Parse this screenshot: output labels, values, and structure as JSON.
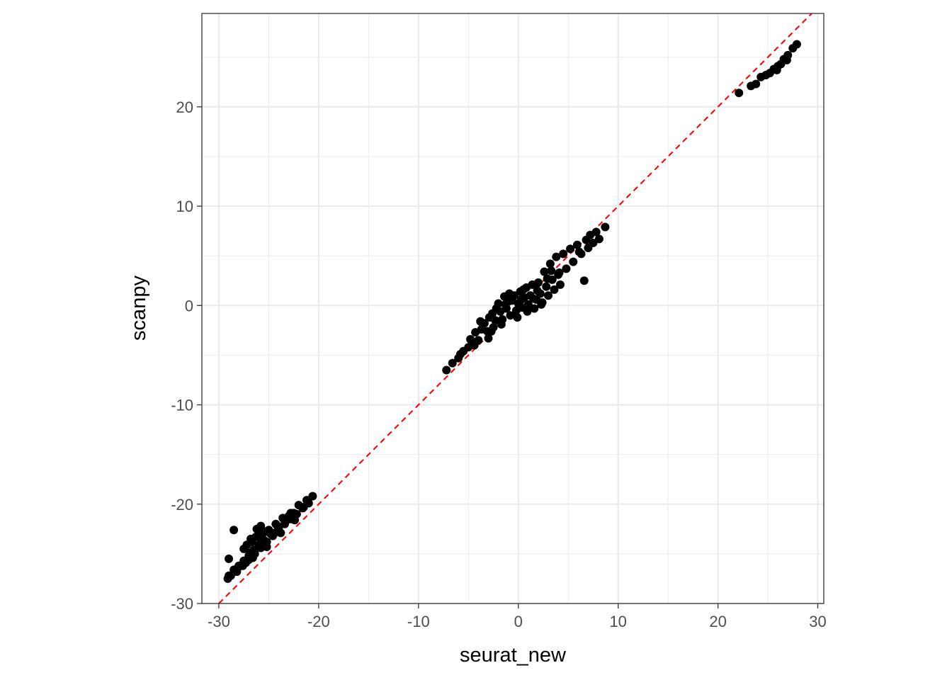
{
  "chart_data": {
    "type": "scatter",
    "title": "",
    "xlabel": "seurat_new",
    "ylabel": "scanpy",
    "xlim": [
      -31.7,
      30.6
    ],
    "ylim": [
      -30,
      29.4
    ],
    "x_ticks": [
      -30,
      -20,
      -10,
      0,
      10,
      20,
      30
    ],
    "y_ticks": [
      -30,
      -20,
      -10,
      0,
      10,
      20
    ],
    "x_tick_labels": [
      "-30",
      "-20",
      "-10",
      "0",
      "10",
      "20",
      "30"
    ],
    "y_tick_labels": [
      "-30",
      "-20",
      "-10",
      "0",
      "10",
      "20"
    ],
    "grid": true,
    "theme": "bw",
    "point_color": "#000000",
    "reference_line": {
      "slope": 1,
      "intercept": 0,
      "style": "dashed",
      "color": "#ff0000"
    },
    "series": [
      {
        "points": [
          [
            -29,
            -25.5
          ],
          [
            -28.5,
            -22.6
          ],
          [
            -27.5,
            -24.5
          ],
          [
            -26.8,
            -23.5
          ],
          [
            -26.2,
            -22.5
          ],
          [
            -25.8,
            -22.2
          ],
          [
            -25,
            -22.6
          ],
          [
            -24.3,
            -22
          ],
          [
            -23.6,
            -21.4
          ],
          [
            -22.8,
            -20.9
          ],
          [
            -22,
            -20.1
          ],
          [
            -21.2,
            -19.6
          ],
          [
            -20.6,
            -19.2
          ],
          [
            -21.5,
            -20.3
          ],
          [
            -22.5,
            -20.9
          ],
          [
            -23.2,
            -21.6
          ],
          [
            -24,
            -22.3
          ],
          [
            -24.8,
            -23
          ],
          [
            -25.5,
            -23.6
          ],
          [
            -26,
            -24.1
          ],
          [
            -26.5,
            -24.6
          ],
          [
            -27,
            -25.2
          ],
          [
            -27.5,
            -25.7
          ],
          [
            -28,
            -26.2
          ],
          [
            -28.5,
            -26.6
          ],
          [
            -29,
            -27.2
          ],
          [
            -29.1,
            -27.5
          ],
          [
            -28.8,
            -27.2
          ],
          [
            -28.2,
            -26.8
          ],
          [
            -27.6,
            -26.2
          ],
          [
            -27,
            -25.6
          ],
          [
            -26.4,
            -25
          ],
          [
            -25.8,
            -24.4
          ],
          [
            -25.2,
            -23.8
          ],
          [
            -24.6,
            -23.2
          ],
          [
            -24,
            -22.6
          ],
          [
            -23.4,
            -22
          ],
          [
            -22.8,
            -21.5
          ],
          [
            -22.2,
            -21
          ],
          [
            -21.6,
            -20.4
          ],
          [
            -21,
            -19.9
          ],
          [
            -27.2,
            -24.1
          ],
          [
            -26.3,
            -23.3
          ],
          [
            -25.4,
            -22.8
          ],
          [
            -24.4,
            -22.9
          ],
          [
            -25.9,
            -23.3
          ],
          [
            -26.9,
            -24.9
          ],
          [
            -28.1,
            -26.4
          ],
          [
            -27.3,
            -25.9
          ],
          [
            -26.6,
            -25.4
          ],
          [
            -25.2,
            -24.3
          ],
          [
            -23.8,
            -22.9
          ],
          [
            -22.4,
            -21.6
          ],
          [
            -23,
            -21.2
          ],
          [
            -24.2,
            -22.1
          ],
          [
            -25.6,
            -22.7
          ],
          [
            -26.7,
            -23.8
          ],
          [
            -7.2,
            -6.5
          ],
          [
            -6.6,
            -5.8
          ],
          [
            -6,
            -5.3
          ],
          [
            -5.5,
            -4.6
          ],
          [
            -5,
            -4.2
          ],
          [
            -4.8,
            -3.4
          ],
          [
            -4.3,
            -2.7
          ],
          [
            -4,
            -3.5
          ],
          [
            -3.7,
            -2.4
          ],
          [
            -3.4,
            -1.8
          ],
          [
            -3.1,
            -2.6
          ],
          [
            -2.9,
            -1.2
          ],
          [
            -2.6,
            -0.8
          ],
          [
            -2.5,
            -2.2
          ],
          [
            -2.3,
            -1.5
          ],
          [
            -2,
            0.2
          ],
          [
            -1.8,
            -0.6
          ],
          [
            -1.6,
            -1.4
          ],
          [
            -1.4,
            0.9
          ],
          [
            -1.2,
            -0.3
          ],
          [
            -1,
            0.4
          ],
          [
            -0.8,
            -1
          ],
          [
            -0.6,
            0.5
          ],
          [
            -0.4,
            1
          ],
          [
            -0.2,
            -0.5
          ],
          [
            0,
            0.2
          ],
          [
            0.2,
            1.4
          ],
          [
            0.4,
            -0.2
          ],
          [
            0.6,
            0.8
          ],
          [
            0.8,
            1.8
          ],
          [
            1,
            0.1
          ],
          [
            1.2,
            1
          ],
          [
            1.4,
            2.1
          ],
          [
            1.6,
            -0.3
          ],
          [
            1.8,
            0.6
          ],
          [
            2,
            2.3
          ],
          [
            2.2,
            1.2
          ],
          [
            2.4,
            0.3
          ],
          [
            2.6,
            3.4
          ],
          [
            2.8,
            1.9
          ],
          [
            3,
            1
          ],
          [
            3.2,
            4.2
          ],
          [
            3.4,
            2.6
          ],
          [
            3.6,
            1.6
          ],
          [
            3.8,
            4.9
          ],
          [
            4,
            3.1
          ],
          [
            4.2,
            2.1
          ],
          [
            4.5,
            5.2
          ],
          [
            4.8,
            3.7
          ],
          [
            5.2,
            5.7
          ],
          [
            5.5,
            4.4
          ],
          [
            5.9,
            6.1
          ],
          [
            6.3,
            5.2
          ],
          [
            6.6,
            2.5
          ],
          [
            6.8,
            6.6
          ],
          [
            7,
            5.8
          ],
          [
            7.2,
            7.1
          ],
          [
            7.5,
            6.3
          ],
          [
            7.8,
            7.4
          ],
          [
            8.1,
            6.7
          ],
          [
            8.7,
            7.9
          ],
          [
            -3.8,
            -1.6
          ],
          [
            -2.2,
            -0.3
          ],
          [
            -0.9,
            1.2
          ],
          [
            0.5,
            1.6
          ],
          [
            1.5,
            0.7
          ],
          [
            2.3,
            0.1
          ],
          [
            2.9,
            2.7
          ],
          [
            -1.7,
            -1.9
          ],
          [
            -3,
            -3.3
          ],
          [
            -4.4,
            -4
          ],
          [
            -5.8,
            -4.9
          ],
          [
            0.9,
            -0.6
          ],
          [
            1.9,
            1.5
          ],
          [
            3.3,
            3.5
          ],
          [
            -0.1,
            -1.2
          ],
          [
            -2.7,
            -2.6
          ],
          [
            -1.3,
            0.1
          ],
          [
            0.3,
            0.6
          ],
          [
            4.1,
            3.3
          ],
          [
            6.1,
            5.4
          ],
          [
            22.1,
            21.4
          ],
          [
            23.3,
            22.1
          ],
          [
            23.8,
            22.3
          ],
          [
            24.3,
            23
          ],
          [
            24.8,
            23.2
          ],
          [
            25.2,
            23.4
          ],
          [
            25.6,
            23.8
          ],
          [
            26,
            24.1
          ],
          [
            26.3,
            24.3
          ],
          [
            26.6,
            24.8
          ],
          [
            27,
            25.2
          ],
          [
            27.5,
            25.9
          ],
          [
            27.9,
            26.3
          ],
          [
            26.9,
            24.7
          ],
          [
            25.9,
            23.7
          ]
        ]
      }
    ]
  }
}
